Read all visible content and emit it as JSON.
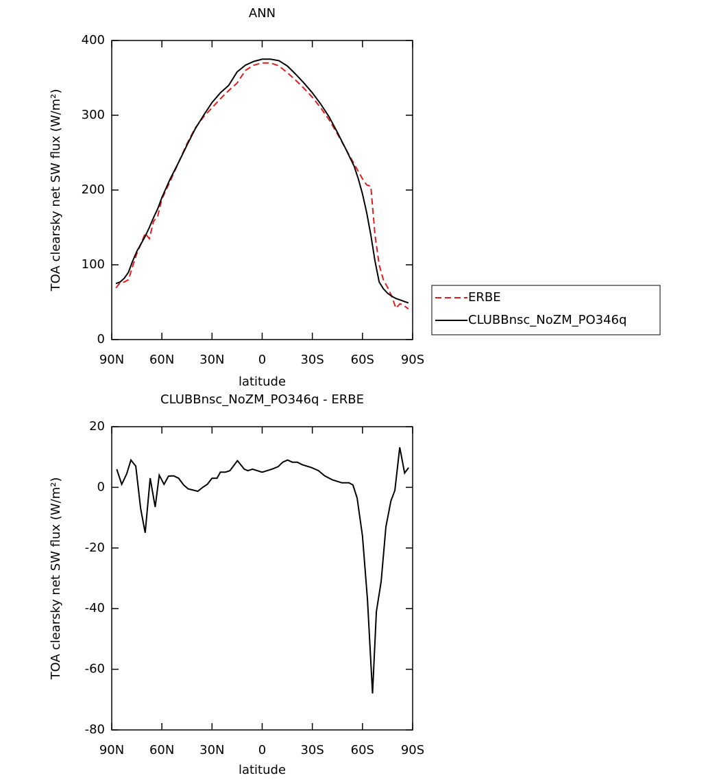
{
  "chart_data": [
    {
      "type": "line",
      "title": "ANN",
      "xlabel": "latitude",
      "ylabel": "TOA clearsky net SW flux (W/m²)",
      "legend": "right",
      "x": [
        87.5,
        85,
        82.5,
        80,
        77.5,
        75,
        72.5,
        70,
        67.5,
        65,
        62.5,
        60,
        55,
        50,
        45,
        40,
        35,
        30,
        25,
        20,
        15,
        10,
        5,
        0,
        -5,
        -10,
        -15,
        -20,
        -25,
        -30,
        -35,
        -40,
        -45,
        -50,
        -55,
        -57.5,
        -60,
        -62.5,
        -65,
        -67.5,
        -70,
        -72.5,
        -75,
        -77.5,
        -80,
        -82.5,
        -85,
        -87.5
      ],
      "series": [
        {
          "name": "ERBE",
          "color": "#e41a1c",
          "dash": true,
          "values": [
            69,
            76,
            77,
            80,
            98,
            115,
            128,
            142,
            135,
            158,
            165,
            188,
            212,
            237,
            262,
            283,
            298,
            310,
            322,
            333,
            343,
            360,
            367,
            370,
            370,
            366,
            357,
            347,
            336,
            324,
            310,
            294,
            275,
            255,
            235,
            225,
            215,
            207,
            205,
            140,
            100,
            80,
            70,
            58,
            42,
            48,
            45,
            41
          ]
        },
        {
          "name": "CLUBBnsc_NoZM_PO346q",
          "color": "#000000",
          "dash": false,
          "values": [
            75,
            77,
            82,
            90,
            105,
            118,
            128,
            138,
            150,
            163,
            175,
            190,
            215,
            237,
            260,
            282,
            300,
            317,
            330,
            340,
            358,
            367,
            372,
            375,
            375,
            373,
            366,
            355,
            343,
            330,
            315,
            298,
            277,
            255,
            232,
            215,
            195,
            170,
            140,
            105,
            77,
            68,
            62,
            58,
            55,
            53,
            51,
            49
          ]
        }
      ],
      "xlim": [
        90,
        -90
      ],
      "xticks": [
        {
          "value": 90,
          "label": "90N"
        },
        {
          "value": 60,
          "label": "60N"
        },
        {
          "value": 30,
          "label": "30N"
        },
        0,
        {
          "value": -30,
          "label": "30S"
        },
        {
          "value": -60,
          "label": "60S"
        },
        {
          "value": -90,
          "label": "90S"
        }
      ],
      "ylim": [
        0,
        400
      ],
      "yticks": [
        0,
        100,
        200,
        300,
        400
      ]
    },
    {
      "type": "line",
      "title": "CLUBBnsc_NoZM_PO346q - ERBE",
      "xlabel": "latitude",
      "ylabel": "TOA clearsky net SW flux (W/m²)",
      "x": [
        87,
        84,
        81,
        78.5,
        75.6,
        72.7,
        70,
        67,
        64,
        61.6,
        58.7,
        56,
        53,
        50,
        47,
        44.3,
        38.5,
        35.6,
        32.8,
        30,
        27,
        25,
        22,
        19.3,
        14.8,
        10.7,
        8.6,
        5.8,
        0,
        -5.8,
        -9.5,
        -12.3,
        -15.2,
        -18,
        -21,
        -23.9,
        -29.6,
        -33.7,
        -37.4,
        -42,
        -47.7,
        -51.9,
        -54.3,
        -56.8,
        -60,
        -63,
        -66,
        -68.3,
        -71.2,
        -74,
        -77,
        -79.4,
        -82.3,
        -85.2,
        -87.6
      ],
      "series": [
        {
          "name": "CLUBBnsc_NoZM_PO346q - ERBE",
          "color": "#000000",
          "dash": false,
          "values": [
            6,
            1,
            4.5,
            9,
            7,
            -7,
            -15,
            3,
            -6.5,
            4,
            1,
            3.7,
            3.8,
            3,
            0.8,
            -0.5,
            -1.3,
            0,
            1,
            3,
            3,
            5,
            5,
            5.5,
            8.8,
            6,
            5.5,
            6,
            5,
            6,
            6.8,
            8.3,
            9,
            8.3,
            8.3,
            7.5,
            6.5,
            5.5,
            3.8,
            2.5,
            1.5,
            1.5,
            0.8,
            -3.5,
            -16,
            -37,
            -68,
            -41,
            -31,
            -13,
            -4.5,
            -1,
            13.2,
            4.7,
            6.5
          ]
        }
      ],
      "xlim": [
        90,
        -90
      ],
      "xticks": [
        {
          "value": 90,
          "label": "90N"
        },
        {
          "value": 60,
          "label": "60N"
        },
        {
          "value": 30,
          "label": "30N"
        },
        0,
        {
          "value": -30,
          "label": "30S"
        },
        {
          "value": -60,
          "label": "60S"
        },
        {
          "value": -90,
          "label": "90S"
        }
      ],
      "ylim": [
        -80,
        20
      ],
      "yticks": [
        -80,
        -60,
        -40,
        -20,
        0,
        20
      ]
    }
  ]
}
